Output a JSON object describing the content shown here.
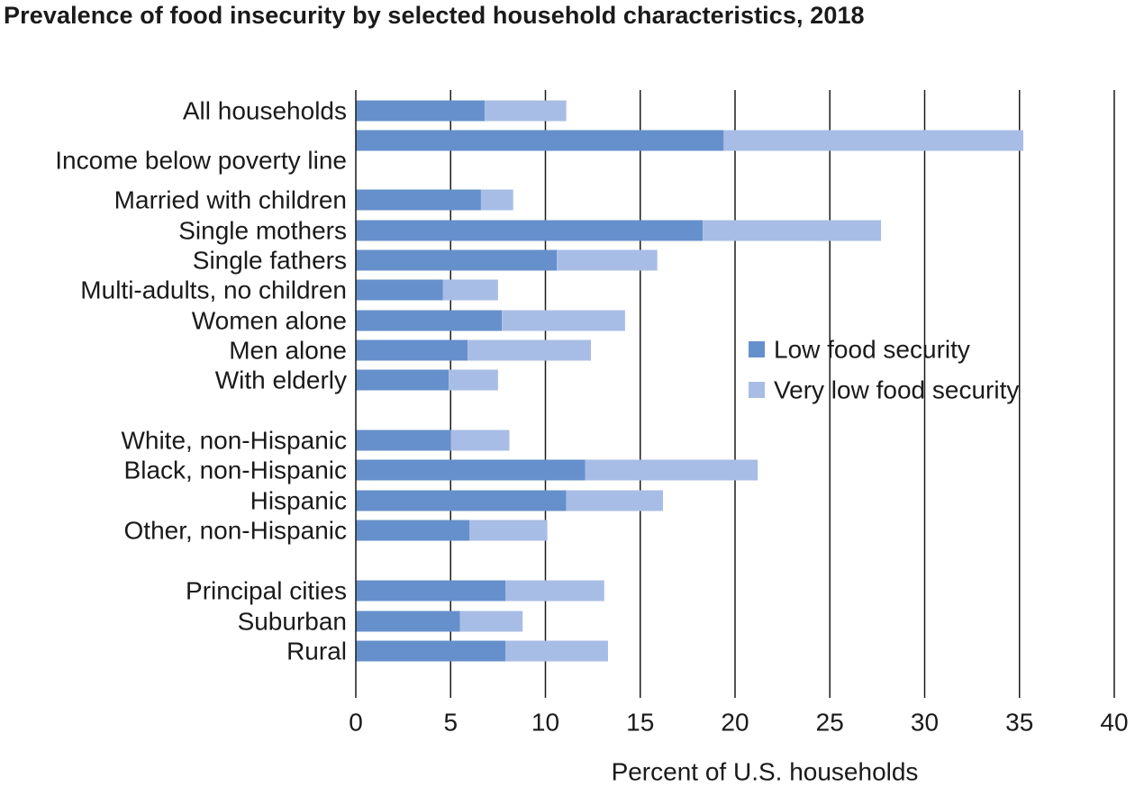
{
  "chart_data": {
    "type": "bar",
    "orientation": "horizontal",
    "stacked": true,
    "title": "Prevalence of food insecurity by selected household characteristics, 2018",
    "xlabel": "Percent of U.S. households",
    "ylabel": "",
    "xlim": [
      0,
      40
    ],
    "xticks": [
      "0",
      "5",
      "10",
      "15",
      "20",
      "25",
      "30",
      "35",
      "40"
    ],
    "grid": true,
    "legend_position": "right",
    "categories": [
      "All households",
      "Income below poverty line",
      "Married with children",
      "Single mothers",
      "Single fathers",
      "Multi-adults, no children",
      "Women alone",
      "Men alone",
      "With elderly",
      "White, non-Hispanic",
      "Black, non-Hispanic",
      "Hispanic",
      "Other, non-Hispanic",
      "Principal cities",
      "Suburban",
      "Rural"
    ],
    "series": [
      {
        "name": "Low food security",
        "color": "#6690cb",
        "values": [
          6.8,
          19.4,
          6.6,
          18.3,
          10.6,
          4.6,
          7.7,
          5.9,
          4.9,
          5.0,
          12.1,
          11.1,
          6.0,
          7.9,
          5.5,
          7.9
        ]
      },
      {
        "name": "Very low food security",
        "color": "#a8bde6",
        "values": [
          4.3,
          15.8,
          1.7,
          9.4,
          5.3,
          2.9,
          6.5,
          6.5,
          2.6,
          3.1,
          9.1,
          5.1,
          4.1,
          5.2,
          3.3,
          5.4
        ]
      }
    ]
  }
}
